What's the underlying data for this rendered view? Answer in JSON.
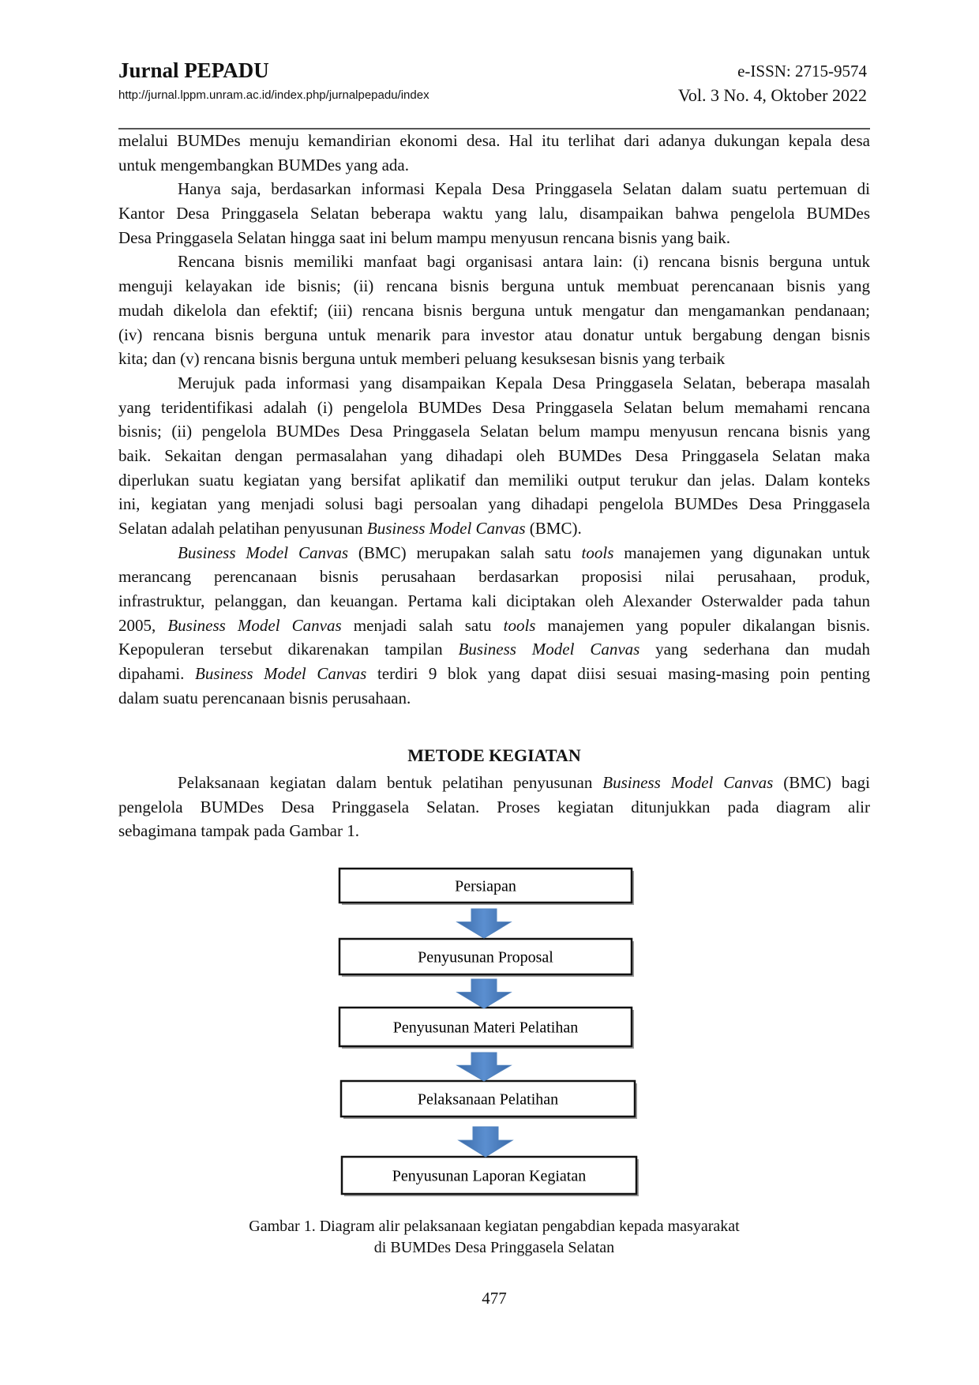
{
  "header": {
    "journal_title": "Jurnal PEPADU",
    "journal_url": "http://jurnal.lppm.unram.ac.id/index.php/jurnalpepadu/index",
    "issn": "e-ISSN: 2715-9574",
    "volume": "Vol. 3 No. 4, Oktober 2022"
  },
  "body": {
    "paragraphs": [
      {
        "indent": false,
        "lines": [
          [
            {
              "t": "melalui BUMDes menuju kemandirian ekonomi desa. Hal itu terlihat dari adanya dukungan kepala desa"
            }
          ],
          [
            {
              "t": "untuk mengembangkan BUMDes yang ada."
            }
          ]
        ]
      },
      {
        "indent": true,
        "lines": [
          [
            {
              "t": "Hanya saja, berdasarkan informasi Kepala Desa Pringgasela Selatan dalam suatu pertemuan di"
            }
          ],
          [
            {
              "t": "Kantor Desa Pringgasela Selatan beberapa waktu yang lalu, disampaikan bahwa pengelola BUMDes"
            }
          ],
          [
            {
              "t": "Desa Pringgasela Selatan hingga saat ini belum mampu menyusun rencana bisnis yang baik."
            }
          ]
        ]
      },
      {
        "indent": true,
        "lines": [
          [
            {
              "t": "Rencana bisnis memiliki manfaat bagi organisasi antara lain: (i) rencana bisnis berguna untuk"
            }
          ],
          [
            {
              "t": "menguji kelayakan ide bisnis; (ii) rencana bisnis berguna untuk membuat perencanaan bisnis yang"
            }
          ],
          [
            {
              "t": "mudah dikelola dan efektif; (iii) rencana bisnis berguna untuk mengatur dan mengamankan pendanaan;"
            }
          ],
          [
            {
              "t": "(iv) rencana bisnis berguna untuk menarik para investor atau donatur untuk bergabung dengan bisnis"
            }
          ],
          [
            {
              "t": "kita; dan (v) rencana bisnis berguna untuk memberi peluang kesuksesan bisnis yang terbaik"
            }
          ]
        ]
      },
      {
        "indent": true,
        "lines": [
          [
            {
              "t": "Merujuk pada informasi yang disampaikan Kepala Desa Pringgasela Selatan, beberapa masalah"
            }
          ],
          [
            {
              "t": "yang teridentifikasi adalah (i) pengelola BUMDes Desa Pringgasela Selatan belum memahami rencana"
            }
          ],
          [
            {
              "t": "bisnis; (ii) pengelola BUMDes Desa Pringgasela Selatan belum mampu menyusun rencana bisnis yang"
            }
          ],
          [
            {
              "t": "baik. Sekaitan dengan permasalahan yang dihadapi oleh BUMDes Desa Pringgasela Selatan maka"
            }
          ],
          [
            {
              "t": "diperlukan suatu kegiatan yang bersifat aplikatif dan memiliki output terukur dan jelas. Dalam konteks"
            }
          ],
          [
            {
              "t": "ini, kegiatan yang menjadi solusi bagi persoalan yang dihadapi pengelola BUMDes Desa Pringgasela"
            }
          ],
          [
            {
              "t": "Selatan adalah pelatihan penyusunan "
            },
            {
              "t": "Business Model Canvas",
              "i": true
            },
            {
              "t": " (BMC)."
            }
          ]
        ]
      },
      {
        "indent": true,
        "lines": [
          [
            {
              "t": "Business Model Canvas",
              "i": true
            },
            {
              "t": " (BMC) merupakan salah satu "
            },
            {
              "t": "tools",
              "i": true
            },
            {
              "t": " manajemen yang digunakan untuk"
            }
          ],
          [
            {
              "t": "merancang perencanaan bisnis perusahaan berdasarkan proposisi nilai perusahaan, produk,"
            }
          ],
          [
            {
              "t": "infrastruktur, pelanggan, dan keuangan. Pertama kali diciptakan oleh Alexander Osterwalder pada tahun"
            }
          ],
          [
            {
              "t": "2005, "
            },
            {
              "t": "Business Model Canvas",
              "i": true
            },
            {
              "t": " menjadi salah satu  "
            },
            {
              "t": "tools",
              "i": true
            },
            {
              "t": " manajemen yang populer dikalangan bisnis."
            }
          ],
          [
            {
              "t": "Kepopuleran tersebut dikarenakan tampilan "
            },
            {
              "t": "Business Model Canvas",
              "i": true
            },
            {
              "t": " yang sederhana dan mudah"
            }
          ],
          [
            {
              "t": "dipahami. "
            },
            {
              "t": "Business Model Canvas",
              "i": true
            },
            {
              "t": " terdiri 9 blok yang dapat diisi sesuai masing-masing poin penting"
            }
          ],
          [
            {
              "t": "dalam suatu perencanaan bisnis perusahaan."
            }
          ]
        ]
      }
    ]
  },
  "method": {
    "heading": "METODE KEGIATAN",
    "paragraphs": [
      {
        "indent": true,
        "lines": [
          [
            {
              "t": "Pelaksanaan kegiatan dalam bentuk pelatihan penyusunan "
            },
            {
              "t": "Business Model Canvas",
              "i": true
            },
            {
              "t": " (BMC) bagi"
            }
          ],
          [
            {
              "t": "pengelola BUMDes Desa Pringgasela Selatan. Proses kegiatan ditunjukkan pada diagram alir"
            }
          ],
          [
            {
              "t": "sebagimana tampak pada Gambar 1."
            }
          ]
        ]
      }
    ]
  },
  "diagram": {
    "steps": [
      "Persiapan",
      "Penyusunan Proposal",
      "Penyusunan Materi Pelatihan",
      "Pelaksanaan Pelatihan",
      "Penyusunan Laporan Kegiatan"
    ],
    "arrow_color": "#4f81bd",
    "caption_line1": "Gambar 1. Diagram alir pelaksanaan kegiatan pengabdian kepada masyarakat",
    "caption_line2": "di BUMDes Desa Pringgasela Selatan"
  },
  "page_number": "477"
}
